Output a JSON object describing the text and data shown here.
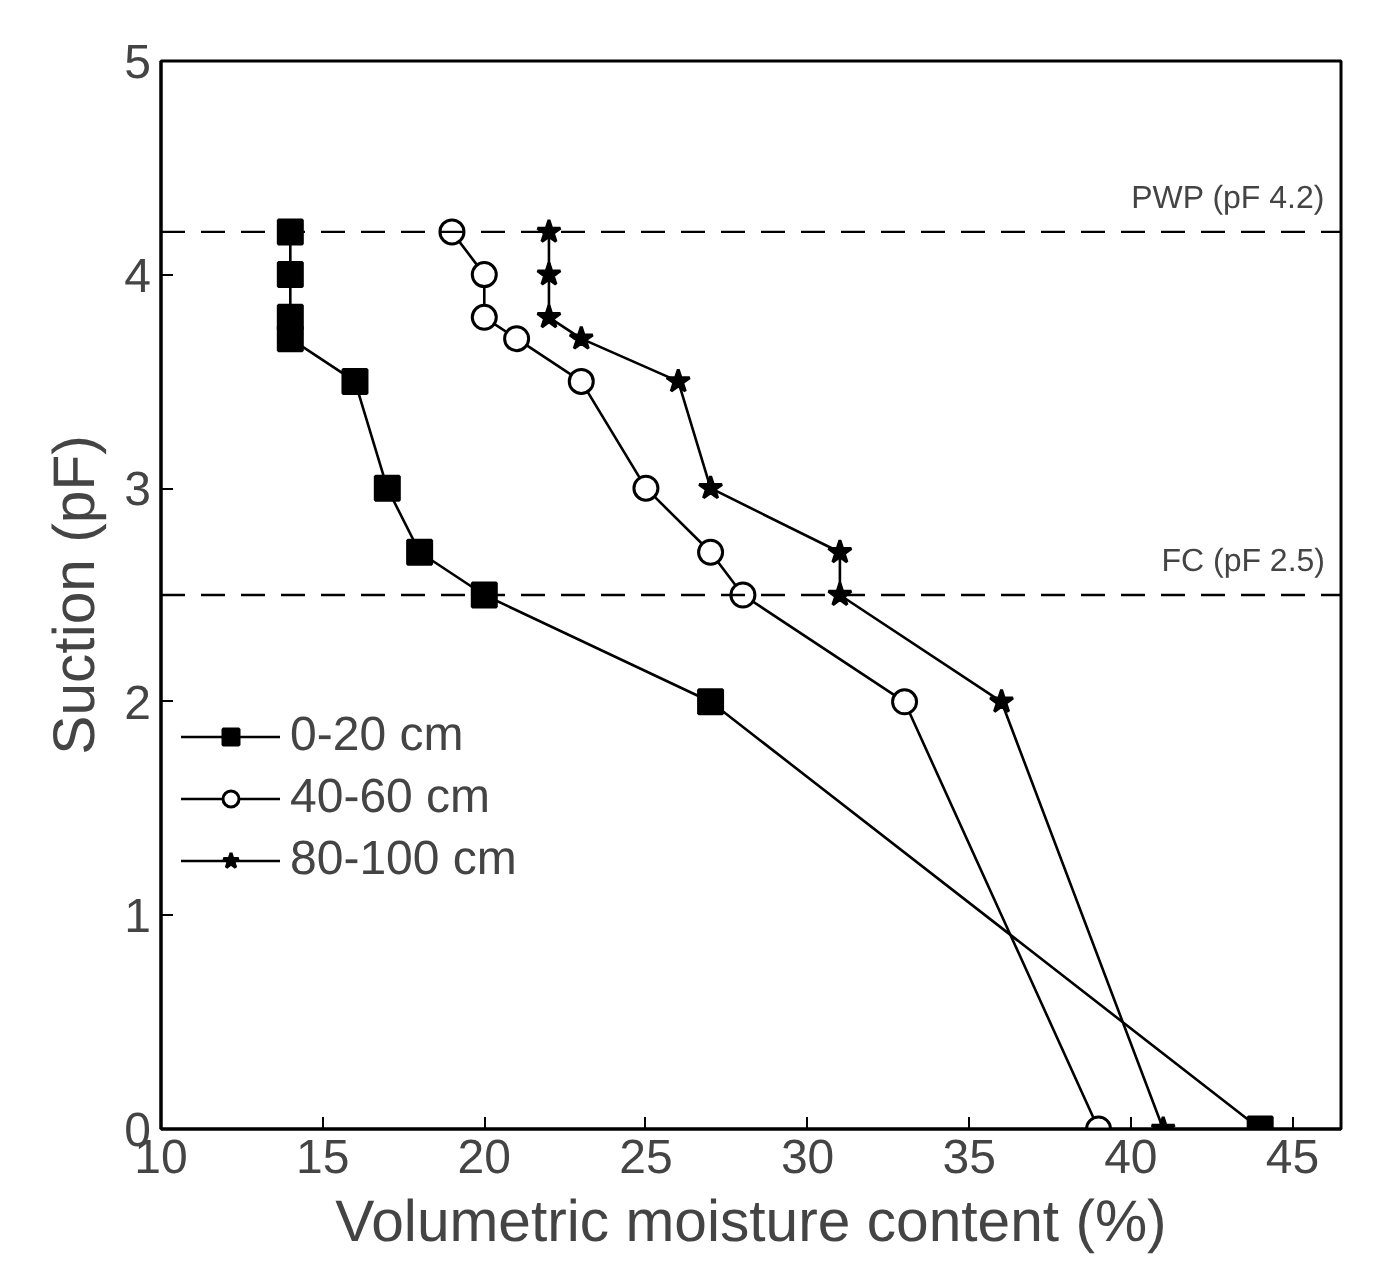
{
  "chart_data": {
    "type": "line",
    "xlabel": "Volumetric moisture content (%)",
    "ylabel": "Suction (pF)",
    "xlim": [
      10,
      46.5
    ],
    "ylim": [
      0,
      5
    ],
    "xticks": [
      10,
      15,
      20,
      25,
      30,
      35,
      40,
      45
    ],
    "yticks": [
      0,
      1,
      2,
      3,
      4,
      5
    ],
    "grid": false,
    "legend": "left",
    "line_style": "solid",
    "series": [
      {
        "name": "0-20 cm",
        "color": "#000000",
        "marker": "square",
        "x": [
          14,
          14,
          14,
          14,
          16,
          17,
          18,
          20,
          27,
          44
        ],
        "values": [
          4.2,
          4.0,
          3.8,
          3.7,
          3.5,
          3.0,
          2.7,
          2.5,
          2.0,
          0
        ]
      },
      {
        "name": "40-60 cm",
        "color": "#000000",
        "marker": "circle",
        "x": [
          19,
          20,
          20,
          21,
          23,
          25,
          27,
          28,
          33,
          39
        ],
        "values": [
          4.2,
          4.0,
          3.8,
          3.7,
          3.5,
          3.0,
          2.7,
          2.5,
          2.0,
          0
        ]
      },
      {
        "name": "80-100 cm",
        "color": "#000000",
        "marker": "star",
        "x": [
          22,
          22,
          22,
          23,
          26,
          27,
          31,
          31,
          36,
          41
        ],
        "values": [
          4.2,
          4.0,
          3.8,
          3.7,
          3.5,
          3.0,
          2.7,
          2.5,
          2.0,
          0
        ]
      }
    ],
    "ref_lines": [
      {
        "axis": "y",
        "value": 4.2,
        "label": "PWP (pF 4.2)",
        "line_style": "dashed"
      },
      {
        "axis": "y",
        "value": 2.5,
        "label": "FC (pF 2.5)",
        "line_style": "dashed"
      }
    ]
  }
}
